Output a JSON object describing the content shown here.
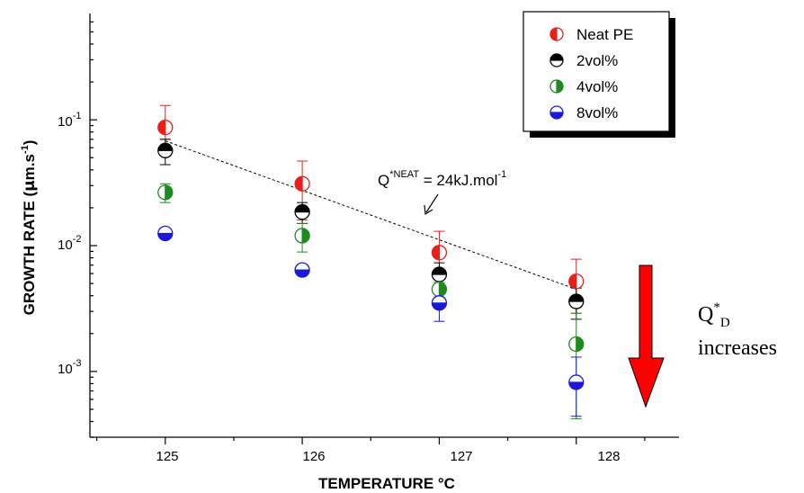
{
  "chart_data": {
    "type": "scatter",
    "xlabel": "TEMPERATURE °C",
    "ylabel": {
      "main": "GROWTH RATE (",
      "mu": "μ",
      "unit": "m.s",
      "exp": "-1",
      "close": ")"
    },
    "x_ticks": [
      "125",
      "126",
      "127",
      "128"
    ],
    "xlim": [
      124.45,
      128.75
    ],
    "ylim": [
      0.0003,
      0.7
    ],
    "y_scale": "log",
    "y_ticks": [
      {
        "value": 0.1,
        "base": "10",
        "exp": "-1"
      },
      {
        "value": 0.01,
        "base": "10",
        "exp": "-2"
      },
      {
        "value": 0.001,
        "base": "10",
        "exp": "-3"
      }
    ],
    "legend_position": "top-right",
    "series": [
      {
        "name": "Neat PE",
        "color": "#e8201c",
        "half": "left",
        "points": [
          {
            "x": 125,
            "y": 0.087,
            "err_lo": 0.07,
            "err_hi": 0.13
          },
          {
            "x": 126,
            "y": 0.031,
            "err_lo": 0.016,
            "err_hi": 0.047
          },
          {
            "x": 127,
            "y": 0.0088,
            "err_lo": 0.0062,
            "err_hi": 0.013
          },
          {
            "x": 128,
            "y": 0.0052,
            "err_lo": 0.0029,
            "err_hi": 0.0078
          }
        ]
      },
      {
        "name": "2vol%",
        "color": "#000000",
        "half": "top",
        "points": [
          {
            "x": 125,
            "y": 0.057,
            "err_lo": 0.044,
            "err_hi": 0.07
          },
          {
            "x": 126,
            "y": 0.0185,
            "err_lo": 0.015,
            "err_hi": 0.022
          },
          {
            "x": 127,
            "y": 0.0059,
            "err_lo": 0.0046,
            "err_hi": 0.0073
          },
          {
            "x": 128,
            "y": 0.0036,
            "err_lo": 0.0026,
            "err_hi": 0.0046
          }
        ]
      },
      {
        "name": "4vol%",
        "color": "#1f8a1f",
        "half": "right",
        "points": [
          {
            "x": 125,
            "y": 0.0265,
            "err_lo": 0.022,
            "err_hi": 0.031
          },
          {
            "x": 126,
            "y": 0.012,
            "err_lo": 0.0089,
            "err_hi": 0.015
          },
          {
            "x": 127,
            "y": 0.0045,
            "err_lo": 0.0039,
            "err_hi": 0.0051
          },
          {
            "x": 128,
            "y": 0.00165,
            "err_lo": 0.00042,
            "err_hi": 0.0029
          }
        ]
      },
      {
        "name": "8vol%",
        "color": "#1a1ad6",
        "half": "bottom",
        "points": [
          {
            "x": 125,
            "y": 0.0125,
            "err_lo": 0.0118,
            "err_hi": 0.0132
          },
          {
            "x": 126,
            "y": 0.0064,
            "err_lo": 0.006,
            "err_hi": 0.0068
          },
          {
            "x": 127,
            "y": 0.0035,
            "err_lo": 0.0025,
            "err_hi": 0.0045
          },
          {
            "x": 128,
            "y": 0.00082,
            "err_lo": 0.00044,
            "err_hi": 0.0013
          }
        ]
      }
    ],
    "fit_line": {
      "x": [
        125,
        128
      ],
      "y": [
        0.068,
        0.0045
      ]
    },
    "annotations": {
      "activation": {
        "prefix": "Q",
        "sup": "*NEAT",
        "body": " = 24kJ.mol",
        "sup2": "-1"
      },
      "side": {
        "q": "Q",
        "sup": "*",
        "sub": "D",
        "line2": "increases"
      }
    },
    "colors": {
      "arrow": "#ff0000",
      "arrow_stroke": "#000000"
    }
  }
}
